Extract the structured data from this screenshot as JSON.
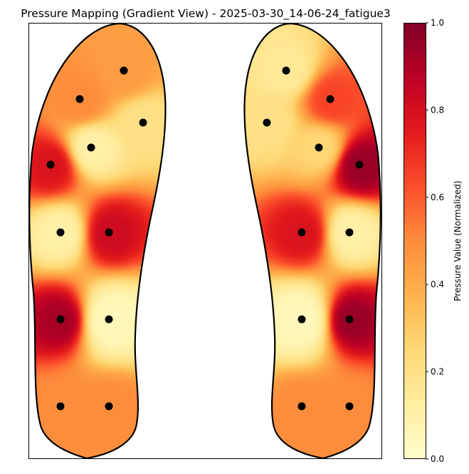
{
  "chart_data": {
    "type": "heatmap",
    "title": "Pressure Mapping (Gradient View) - 2025-03-30_14-06-24_fatigue3",
    "colormap": "YlOrRd",
    "axes_ticks_visible": false,
    "colorbar": {
      "label": "Pressure Value (Normalized)",
      "range": [
        0,
        1
      ],
      "ticks": [
        "0.0",
        "0.2",
        "0.4",
        "0.6",
        "0.8",
        "1.0"
      ],
      "tick_values": [
        0.0,
        0.2,
        0.4,
        0.6,
        0.8,
        1.0
      ]
    },
    "sensor_marker_color": "#000000",
    "feet": [
      {
        "side": "left",
        "sensors": [
          {
            "row": "toe",
            "col": "outer",
            "value": 0.45
          },
          {
            "row": "toe",
            "col": "inner",
            "value": 0.5
          },
          {
            "row": "forefoot-upper",
            "col": "outer",
            "value": 0.2
          },
          {
            "row": "forefoot-upper",
            "col": "inner",
            "value": 0.1
          },
          {
            "row": "forefoot-lower",
            "col": "outer",
            "value": 0.78
          },
          {
            "row": "forefoot-lower",
            "col": "inner",
            "value": 0.05
          },
          {
            "row": "midfoot",
            "col": "outer",
            "value": 0.1
          },
          {
            "row": "midfoot",
            "col": "inner",
            "value": 0.82
          },
          {
            "row": "rearfoot",
            "col": "outer",
            "value": 0.92
          },
          {
            "row": "rearfoot",
            "col": "inner",
            "value": 0.05
          },
          {
            "row": "heel",
            "col": "outer",
            "value": 0.5
          },
          {
            "row": "heel",
            "col": "inner",
            "value": 0.5
          }
        ]
      },
      {
        "side": "right",
        "sensors": [
          {
            "row": "toe",
            "col": "inner",
            "value": 0.15
          },
          {
            "row": "toe",
            "col": "outer",
            "value": 0.65
          },
          {
            "row": "forefoot-upper",
            "col": "inner",
            "value": 0.2
          },
          {
            "row": "forefoot-upper",
            "col": "outer",
            "value": 0.25
          },
          {
            "row": "forefoot-lower",
            "col": "inner",
            "value": 0.05
          },
          {
            "row": "forefoot-lower",
            "col": "outer",
            "value": 0.95
          },
          {
            "row": "midfoot",
            "col": "inner",
            "value": 0.78
          },
          {
            "row": "midfoot",
            "col": "outer",
            "value": 0.1
          },
          {
            "row": "rearfoot",
            "col": "inner",
            "value": 0.05
          },
          {
            "row": "rearfoot",
            "col": "outer",
            "value": 0.95
          },
          {
            "row": "heel",
            "col": "inner",
            "value": 0.5
          },
          {
            "row": "heel",
            "col": "outer",
            "value": 0.5
          }
        ]
      }
    ]
  }
}
